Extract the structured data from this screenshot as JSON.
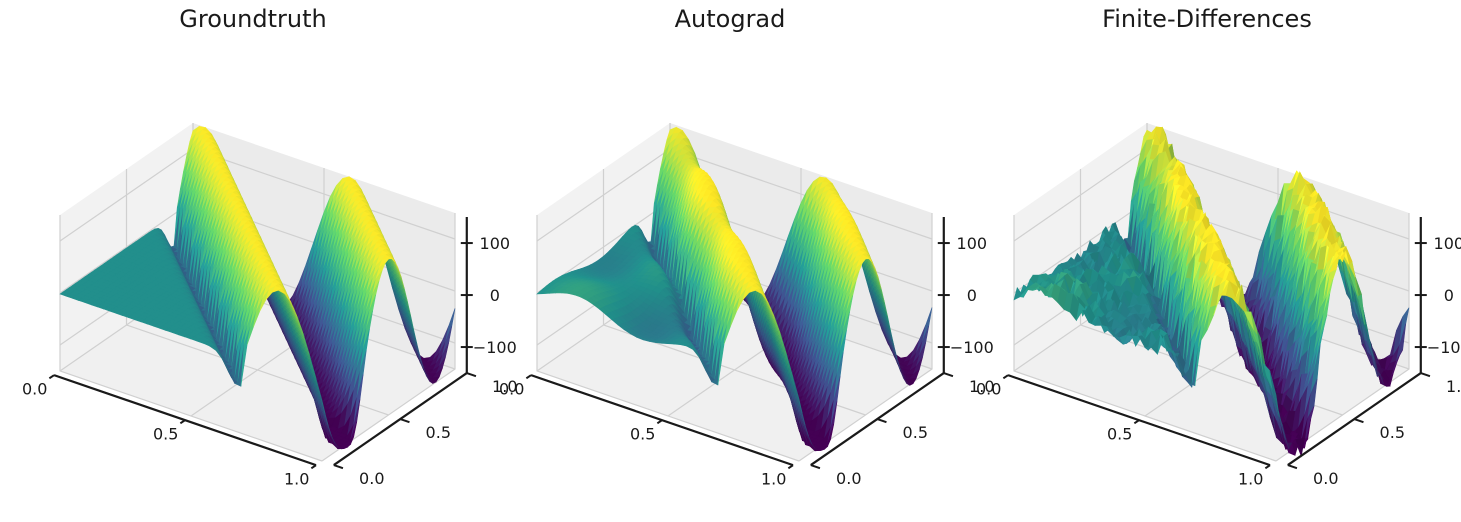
{
  "chart_data": [
    {
      "type": "surface",
      "title": "Groundtruth",
      "x_ticks": [
        "0.0",
        "0.5",
        "1.0"
      ],
      "y_ticks": [
        "0.0",
        "0.5",
        "1.0"
      ],
      "z_ticks": [
        "−100",
        "0",
        "100"
      ],
      "xlim": [
        0,
        1
      ],
      "ylim": [
        0,
        1
      ],
      "zlim": [
        -150,
        150
      ],
      "grid": true,
      "colormap": "viridis",
      "noise": 0,
      "ridge": 0
    },
    {
      "type": "surface",
      "title": "Autograd",
      "x_ticks": [
        "0.0",
        "0.5",
        "1.0"
      ],
      "y_ticks": [
        "0.0",
        "0.5",
        "1.0"
      ],
      "z_ticks": [
        "−100",
        "0",
        "100"
      ],
      "xlim": [
        0,
        1
      ],
      "ylim": [
        0,
        1
      ],
      "zlim": [
        -150,
        150
      ],
      "grid": true,
      "colormap": "viridis",
      "noise": 0,
      "ridge": 28
    },
    {
      "type": "surface",
      "title": "Finite-Differences",
      "x_ticks": [
        "0.0",
        "0.5",
        "1.0"
      ],
      "y_ticks": [
        "0.0",
        "0.5",
        "1.0"
      ],
      "z_ticks": [
        "−100",
        "0",
        "100"
      ],
      "xlim": [
        0,
        1
      ],
      "ylim": [
        0,
        1
      ],
      "zlim": [
        -150,
        150
      ],
      "grid": true,
      "colormap": "viridis",
      "noise": 22,
      "ridge": 22
    }
  ],
  "colors": {
    "pane_left": "#f2f2f2",
    "pane_back": "#ebebeb",
    "pane_floor": "#f0f0f0",
    "grid": "#d0d0d0",
    "axis": "#1a1a1a",
    "viridis": [
      "#440154",
      "#3b528b",
      "#21918c",
      "#5ec962",
      "#fde725"
    ]
  }
}
